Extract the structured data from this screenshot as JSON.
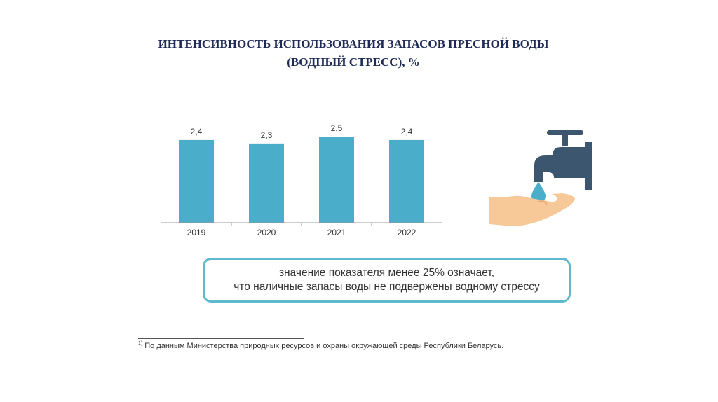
{
  "title": {
    "line1": "ИНТЕНСИВНОСТЬ ИСПОЛЬЗОВАНИЯ ЗАПАСОВ ПРЕСНОЙ ВОДЫ",
    "line2": "(ВОДНЫЙ СТРЕСС), %"
  },
  "chart_data": {
    "type": "bar",
    "categories": [
      "2019",
      "2020",
      "2021",
      "2022"
    ],
    "values": [
      2.4,
      2.3,
      2.5,
      2.4
    ],
    "value_labels": [
      "2,4",
      "2,3",
      "2,5",
      "2,4"
    ],
    "bar_color": "#4aadca",
    "ylim": [
      0,
      2.5
    ],
    "grid": false
  },
  "note": {
    "line1": "значение показателя менее 25% означает,",
    "line2": "что наличные запасы воды не подвержены водному стрессу"
  },
  "footnote": {
    "mark": "1)",
    "text": "По данным Министерства природных ресурсов и охраны окружающей среды Республики Беларусь."
  },
  "icons": [
    "water-tap-icon",
    "water-drop-icon",
    "open-hand-icon"
  ]
}
